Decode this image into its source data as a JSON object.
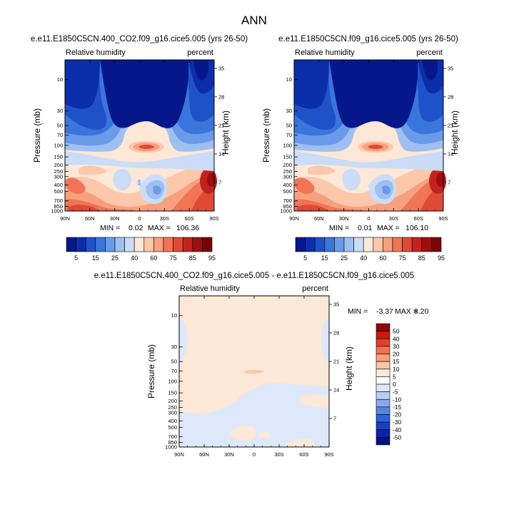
{
  "figure": {
    "title": "ANN"
  },
  "colors": {
    "abs_scale": [
      "#06178c",
      "#0d2eaa",
      "#1f52c8",
      "#3a75dc",
      "#6a9ae8",
      "#9fbff0",
      "#cadcf7",
      "#fde7d6",
      "#fcc7ab",
      "#f8a07e",
      "#f07455",
      "#de4a35",
      "#c32320",
      "#9d0e12",
      "#7a0403"
    ],
    "diff_scale": [
      "#08127e",
      "#0d23a0",
      "#1a3fc4",
      "#2f62db",
      "#5585e6",
      "#86aaee",
      "#b6cdf5",
      "#dde9fa",
      "#ffffff",
      "#fde7d6",
      "#fcc7ab",
      "#f8a07e",
      "#f27252",
      "#e34128",
      "#c41a12",
      "#8f0808"
    ]
  },
  "chart_data": [
    {
      "type": "heatmap",
      "title": "e.e11.E1850C5CN.400_CO2.f09_g16.cice5.005 (yrs 26-50)",
      "variable": "Relative humidity",
      "units": "percent",
      "xlabel": "",
      "ylabel": "Pressure (mb)",
      "ylabel_right": "Height (km)",
      "x_ticks": [
        "90N",
        "60N",
        "30N",
        "0",
        "30S",
        "60S",
        "90S"
      ],
      "y_ticks": [
        "10",
        "30",
        "50",
        "70",
        "100",
        "150",
        "200",
        "250",
        "300",
        "400",
        "500",
        "700",
        "850",
        "1000"
      ],
      "y_ticks_right": [
        "35",
        "28",
        "21",
        "14",
        "7"
      ],
      "stats": {
        "min_label": "MIN =",
        "min": "0.02",
        "max_label": "MAX =",
        "max": "106.36"
      },
      "colorbar_labels": [
        "5",
        "15",
        "25",
        "40",
        "60",
        "75",
        "85",
        "95"
      ],
      "grid": false
    },
    {
      "type": "heatmap",
      "title": "e.e11.E1850C5CN.f09_g16.cice5.005 (yrs 26-50)",
      "variable": "Relative humidity",
      "units": "percent",
      "xlabel": "",
      "ylabel": "Pressure (mb)",
      "ylabel_right": "Height (km)",
      "x_ticks": [
        "90N",
        "60N",
        "30N",
        "0",
        "30S",
        "60S",
        "90S"
      ],
      "y_ticks": [
        "10",
        "30",
        "50",
        "70",
        "100",
        "150",
        "200",
        "250",
        "300",
        "400",
        "500",
        "700",
        "850",
        "1000"
      ],
      "y_ticks_right": [
        "35",
        "28",
        "21",
        "14",
        "7"
      ],
      "stats": {
        "min_label": "MIN =",
        "min": "0.01",
        "max_label": "MAX =",
        "max": "106.10"
      },
      "colorbar_labels": [
        "5",
        "15",
        "25",
        "40",
        "60",
        "75",
        "85",
        "95"
      ],
      "grid": false
    },
    {
      "type": "heatmap",
      "title": "e.e11.E1850C5CN.400_CO2.f09_g16.cice5.005 - e.e11.E1850C5CN.f09_g16.cice5.005",
      "variable": "Relative humidity",
      "units": "percent",
      "xlabel": "",
      "ylabel": "Pressure (mb)",
      "ylabel_right": "Height (km)",
      "x_ticks": [
        "90N",
        "60N",
        "30N",
        "0",
        "30S",
        "60S",
        "90S"
      ],
      "y_ticks": [
        "10",
        "30",
        "50",
        "70",
        "100",
        "150",
        "200",
        "250",
        "300",
        "400",
        "500",
        "700",
        "850",
        "1000"
      ],
      "y_ticks_right": [
        "35",
        "28",
        "21",
        "14",
        "7"
      ],
      "stats": {
        "min_label": "MIN =",
        "min": "-3.37",
        "max_label": "MAX =",
        "max": "8.20"
      },
      "colorbar_labels": [
        "50",
        "40",
        "30",
        "20",
        "15",
        "10",
        "5",
        "0",
        "-5",
        "-10",
        "-15",
        "-20",
        "-30",
        "-40",
        "-50"
      ],
      "grid": false
    }
  ]
}
